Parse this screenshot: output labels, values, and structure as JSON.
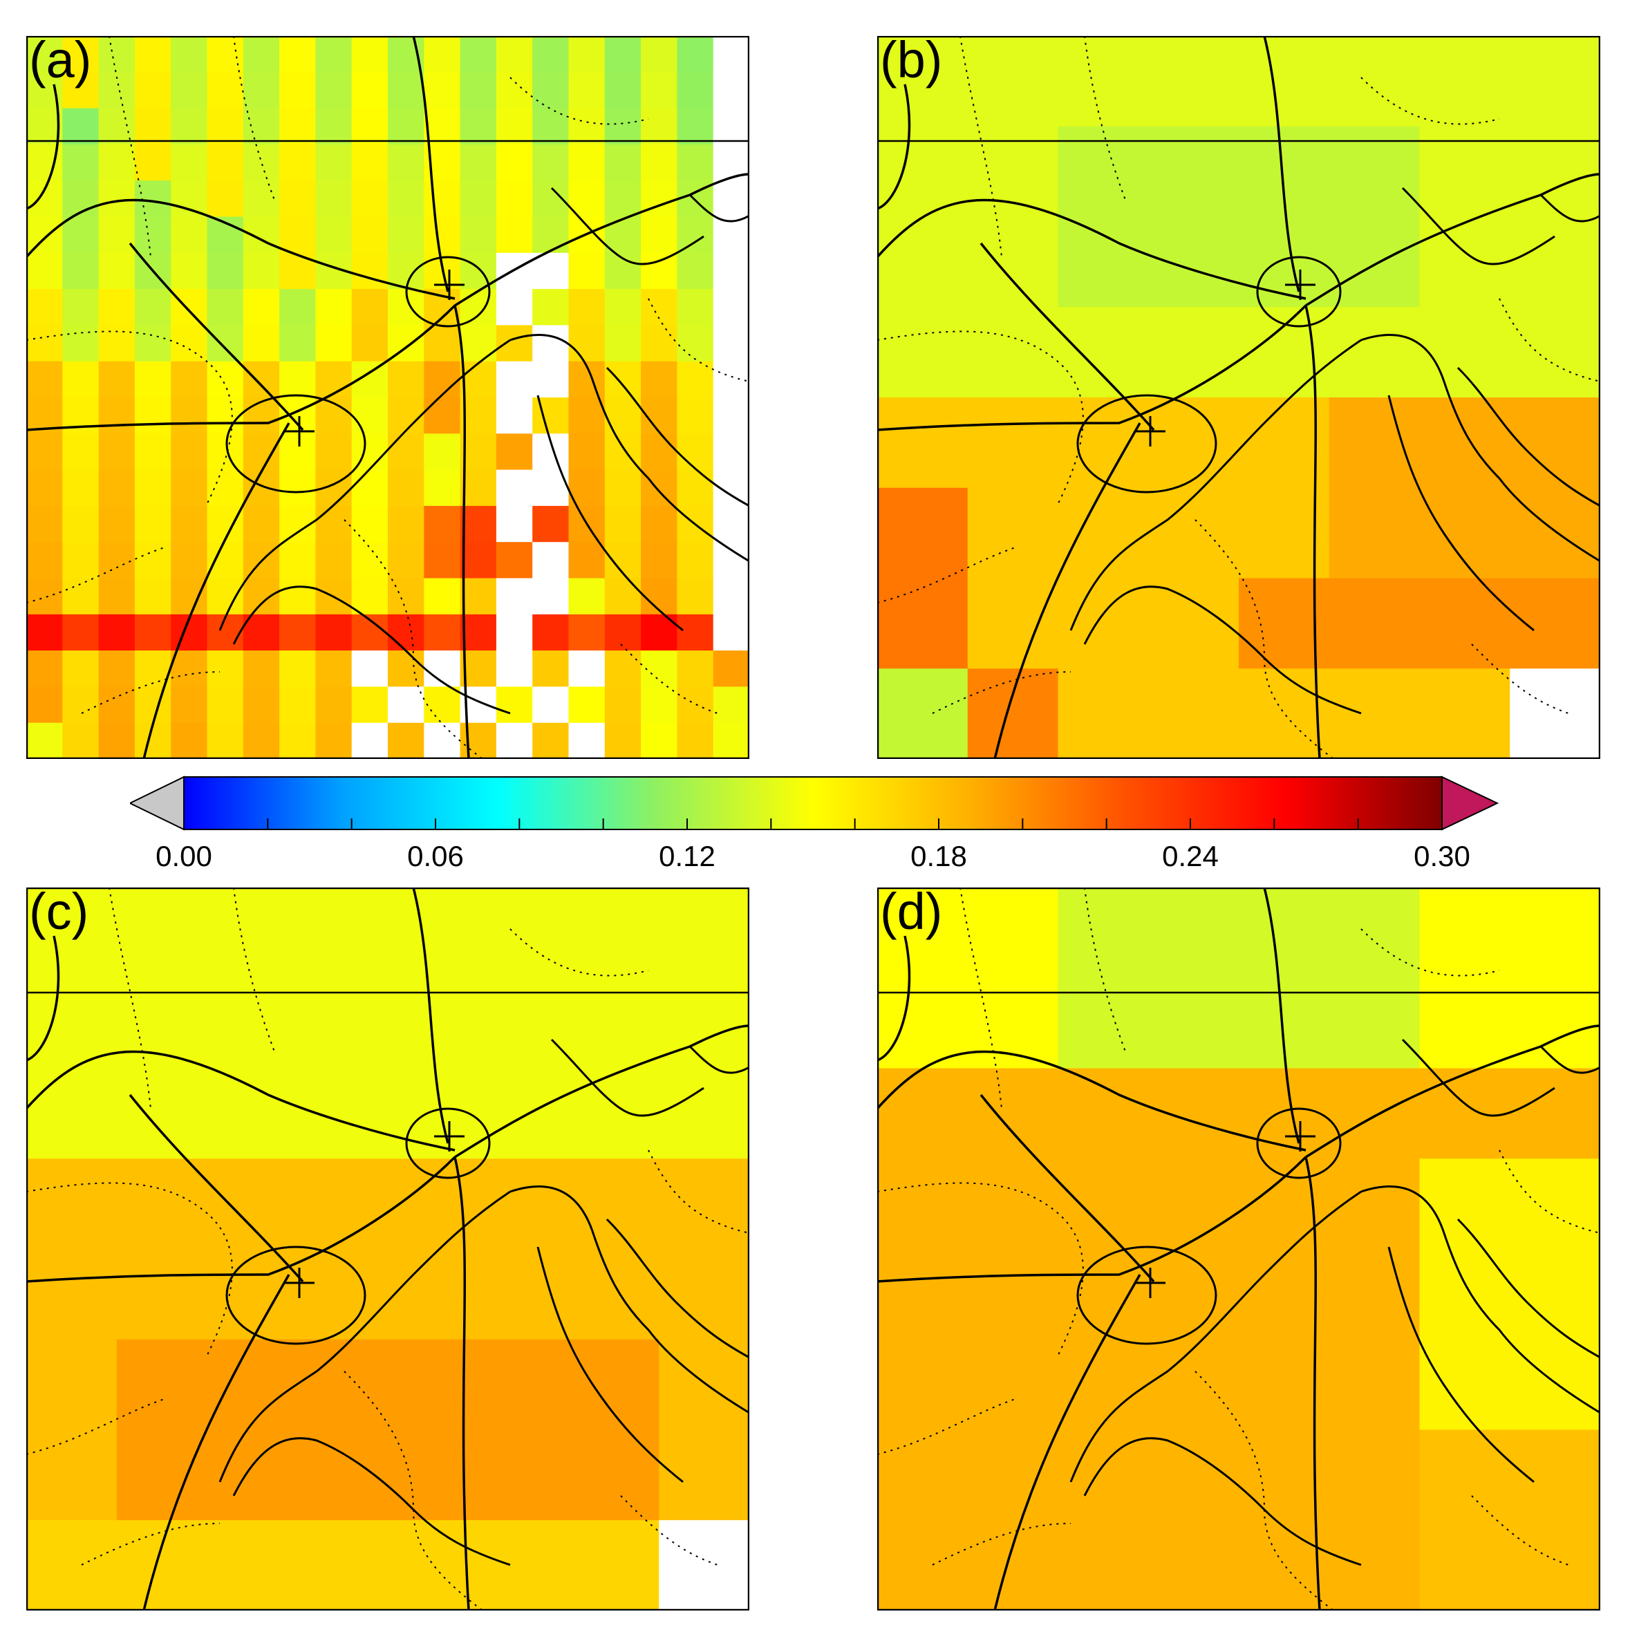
{
  "panels": [
    {
      "id": "a",
      "label": "(a)"
    },
    {
      "id": "b",
      "label": "(b)"
    },
    {
      "id": "c",
      "label": "(c)"
    },
    {
      "id": "d",
      "label": "(d)"
    }
  ],
  "colorbar": {
    "min": 0.0,
    "max": 0.3,
    "under_color": "#c8c8c8",
    "over_color": "#c0185a",
    "tick_labels": [
      "0.00",
      "0.06",
      "0.12",
      "0.18",
      "0.24",
      "0.30"
    ],
    "stops": [
      "#0000ff",
      "#00a0ff",
      "#00ffff",
      "#90f060",
      "#ffff00",
      "#ffb000",
      "#ff5000",
      "#ff0000",
      "#800000"
    ]
  },
  "missing_color": "#ffffff"
}
